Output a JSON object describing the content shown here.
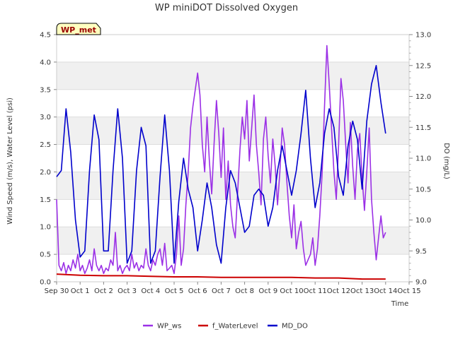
{
  "chart_data": {
    "type": "line",
    "title": "WP miniDOT Dissolved Oxygen",
    "badge": "WP_met",
    "xlabel": "Time",
    "ylabel_left": "Wind Speed (m/s), Water Level (psi)",
    "ylabel_right": "DO (mg/L)",
    "ylim_left": [
      0.0,
      4.5
    ],
    "ylim_right": [
      9.0,
      13.0
    ],
    "xlim": [
      0,
      15
    ],
    "x_ticks": [
      {
        "x": 0,
        "label": "Sep 30"
      },
      {
        "x": 1,
        "label": "Oct 1"
      },
      {
        "x": 2,
        "label": "Oct 2"
      },
      {
        "x": 3,
        "label": "Oct 3"
      },
      {
        "x": 4,
        "label": "Oct 4"
      },
      {
        "x": 5,
        "label": "Oct 5"
      },
      {
        "x": 6,
        "label": "Oct 6"
      },
      {
        "x": 7,
        "label": "Oct 7"
      },
      {
        "x": 8,
        "label": "Oct 8"
      },
      {
        "x": 9,
        "label": "Oct 9"
      },
      {
        "x": 10,
        "label": "Oct 10"
      },
      {
        "x": 11,
        "label": "Oct 11"
      },
      {
        "x": 12,
        "label": "Oct 12"
      },
      {
        "x": 13,
        "label": "Oct 13"
      },
      {
        "x": 14,
        "label": "Oct 14"
      },
      {
        "x": 15,
        "label": "Oct 15"
      }
    ],
    "y_ticks_left": [
      "0.0",
      "0.5",
      "1.0",
      "1.5",
      "2.0",
      "2.5",
      "3.0",
      "3.5",
      "4.0",
      "4.5"
    ],
    "y_ticks_right": [
      "9.0",
      "9.5",
      "10.0",
      "10.5",
      "11.0",
      "11.5",
      "12.0",
      "12.5",
      "13.0"
    ],
    "grid": "horizontal bands",
    "legend_placement": "bottom",
    "series": [
      {
        "name": "WP_ws",
        "axis": "left",
        "color": "#9b30e6",
        "x": [
          0.0,
          0.1,
          0.2,
          0.3,
          0.4,
          0.5,
          0.6,
          0.7,
          0.8,
          0.9,
          1.0,
          1.1,
          1.2,
          1.3,
          1.4,
          1.5,
          1.6,
          1.7,
          1.8,
          1.9,
          2.0,
          2.1,
          2.2,
          2.3,
          2.4,
          2.5,
          2.6,
          2.7,
          2.8,
          2.9,
          3.0,
          3.1,
          3.2,
          3.3,
          3.4,
          3.5,
          3.6,
          3.7,
          3.8,
          3.9,
          4.0,
          4.1,
          4.2,
          4.3,
          4.4,
          4.5,
          4.6,
          4.7,
          4.8,
          4.9,
          5.0,
          5.1,
          5.2,
          5.3,
          5.4,
          5.5,
          5.6,
          5.7,
          5.8,
          5.9,
          6.0,
          6.1,
          6.2,
          6.3,
          6.4,
          6.5,
          6.6,
          6.7,
          6.8,
          6.9,
          7.0,
          7.1,
          7.2,
          7.3,
          7.4,
          7.5,
          7.6,
          7.7,
          7.8,
          7.9,
          8.0,
          8.1,
          8.2,
          8.3,
          8.4,
          8.5,
          8.6,
          8.7,
          8.8,
          8.9,
          9.0,
          9.1,
          9.2,
          9.3,
          9.4,
          9.5,
          9.6,
          9.7,
          9.8,
          9.9,
          10.0,
          10.1,
          10.2,
          10.3,
          10.4,
          10.5,
          10.6,
          10.7,
          10.8,
          10.9,
          11.0,
          11.1,
          11.2,
          11.3,
          11.4,
          11.5,
          11.6,
          11.7,
          11.8,
          11.9,
          12.0,
          12.1,
          12.2,
          12.3,
          12.4,
          12.5,
          12.6,
          12.7,
          12.8,
          12.9,
          13.0,
          13.1,
          13.2,
          13.3,
          13.4,
          13.5,
          13.6,
          13.7,
          13.8,
          13.9,
          14.0
        ],
        "values": [
          1.5,
          0.3,
          0.2,
          0.35,
          0.15,
          0.3,
          0.2,
          0.4,
          0.25,
          0.5,
          0.2,
          0.3,
          0.15,
          0.25,
          0.4,
          0.2,
          0.6,
          0.3,
          0.2,
          0.3,
          0.15,
          0.25,
          0.2,
          0.4,
          0.3,
          0.9,
          0.2,
          0.3,
          0.15,
          0.25,
          0.3,
          0.2,
          0.5,
          0.25,
          0.35,
          0.2,
          0.3,
          0.25,
          0.6,
          0.3,
          0.2,
          0.4,
          0.3,
          0.5,
          0.6,
          0.3,
          0.7,
          0.2,
          0.25,
          0.3,
          0.15,
          0.5,
          1.2,
          0.3,
          0.6,
          1.4,
          2.0,
          2.8,
          3.2,
          3.5,
          3.8,
          3.4,
          2.5,
          2.0,
          3.0,
          2.2,
          1.6,
          2.5,
          3.3,
          2.7,
          1.9,
          2.8,
          1.5,
          2.2,
          1.4,
          1.0,
          0.8,
          1.6,
          2.4,
          3.0,
          2.6,
          3.3,
          2.2,
          2.8,
          3.4,
          2.5,
          2.0,
          1.4,
          2.6,
          3.0,
          2.3,
          1.8,
          2.6,
          2.1,
          1.4,
          2.0,
          2.8,
          2.5,
          1.8,
          1.2,
          0.8,
          1.4,
          0.6,
          0.9,
          1.1,
          0.6,
          0.3,
          0.4,
          0.5,
          0.8,
          0.3,
          0.6,
          1.2,
          2.0,
          3.2,
          4.3,
          3.6,
          2.8,
          2.0,
          1.5,
          2.5,
          3.7,
          3.3,
          2.5,
          1.8,
          2.9,
          2.1,
          1.5,
          2.4,
          2.7,
          1.9,
          1.3,
          2.0,
          2.8,
          1.5,
          0.9,
          0.4,
          0.8,
          1.2,
          0.8,
          0.9
        ]
      },
      {
        "name": "f_WaterLevel",
        "axis": "left",
        "color": "#cc0000",
        "x": [
          0.0,
          1.0,
          2.0,
          3.0,
          4.0,
          5.0,
          6.0,
          7.0,
          8.0,
          9.0,
          10.0,
          11.0,
          12.0,
          13.0,
          14.0
        ],
        "values": [
          0.14,
          0.12,
          0.11,
          0.11,
          0.1,
          0.09,
          0.09,
          0.08,
          0.08,
          0.08,
          0.08,
          0.07,
          0.07,
          0.05,
          0.05
        ]
      },
      {
        "name": "MD_DO",
        "axis": "right",
        "color": "#0000cc",
        "x": [
          0.0,
          0.2,
          0.4,
          0.6,
          0.8,
          1.0,
          1.2,
          1.4,
          1.6,
          1.8,
          2.0,
          2.2,
          2.4,
          2.6,
          2.8,
          3.0,
          3.2,
          3.4,
          3.6,
          3.8,
          4.0,
          4.2,
          4.4,
          4.6,
          4.8,
          5.0,
          5.2,
          5.4,
          5.6,
          5.8,
          6.0,
          6.2,
          6.4,
          6.6,
          6.8,
          7.0,
          7.2,
          7.4,
          7.6,
          7.8,
          8.0,
          8.2,
          8.4,
          8.6,
          8.8,
          9.0,
          9.2,
          9.4,
          9.6,
          9.8,
          10.0,
          10.2,
          10.4,
          10.6,
          10.8,
          11.0,
          11.2,
          11.4,
          11.6,
          11.8,
          12.0,
          12.2,
          12.4,
          12.6,
          12.8,
          13.0,
          13.2,
          13.4,
          13.6,
          13.8,
          14.0
        ],
        "values": [
          10.7,
          10.8,
          11.8,
          11.1,
          10.0,
          9.4,
          9.5,
          10.8,
          11.7,
          11.3,
          9.5,
          9.5,
          10.8,
          11.8,
          11.0,
          9.3,
          9.5,
          10.8,
          11.5,
          11.2,
          9.3,
          9.5,
          10.7,
          11.7,
          10.8,
          9.3,
          10.3,
          11.0,
          10.5,
          10.2,
          9.5,
          10.0,
          10.6,
          10.2,
          9.6,
          9.3,
          10.2,
          10.8,
          10.6,
          10.2,
          9.8,
          9.9,
          10.4,
          10.5,
          10.4,
          9.9,
          10.2,
          10.8,
          11.2,
          10.8,
          10.4,
          10.8,
          11.4,
          12.1,
          11.0,
          10.2,
          10.6,
          11.4,
          11.8,
          11.5,
          10.7,
          10.4,
          11.2,
          11.6,
          11.3,
          10.5,
          11.6,
          12.2,
          12.5,
          11.9,
          11.4
        ]
      }
    ]
  }
}
